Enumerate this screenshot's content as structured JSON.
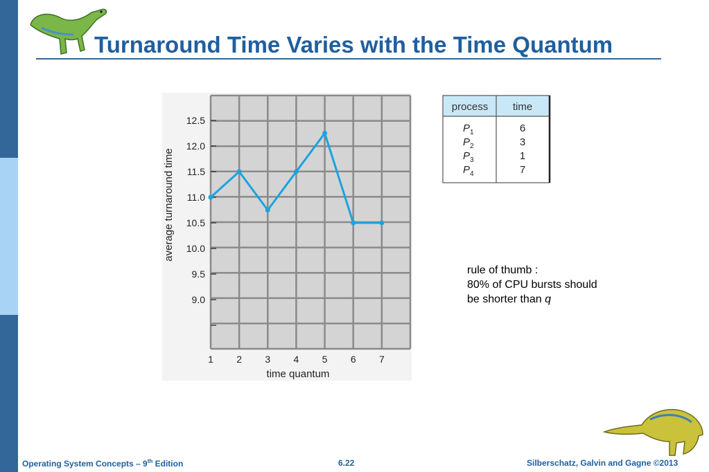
{
  "slide": {
    "title": "Turnaround Time Varies with the Time Quantum",
    "note": {
      "line1": "rule of thumb :",
      "line2": "80% of CPU bursts should",
      "line3_prefix": "be shorter than ",
      "line3_var": "q"
    },
    "footer": {
      "left_prefix": "Operating System Concepts – 9",
      "left_sup": "th",
      "left_suffix": " Edition",
      "center": "6.22",
      "right": "Silberschatz, Galvin and Gagne ©2013"
    },
    "icons": [
      "dinosaur-logo-icon",
      "dinosaur-bottom-icon"
    ]
  },
  "process_table": {
    "headers": [
      "process",
      "time"
    ],
    "rows": [
      {
        "name": "P",
        "sub": "1",
        "time": "6"
      },
      {
        "name": "P",
        "sub": "2",
        "time": "3"
      },
      {
        "name": "P",
        "sub": "3",
        "time": "1"
      },
      {
        "name": "P",
        "sub": "4",
        "time": "7"
      }
    ]
  },
  "chart_data": {
    "type": "line",
    "xlabel": "time quantum",
    "ylabel": "average turnaround time",
    "x": [
      1,
      2,
      3,
      4,
      5,
      6,
      7
    ],
    "x_tick_labels": [
      "1",
      "2",
      "3",
      "4",
      "5",
      "6",
      "7"
    ],
    "y_tick_labels": [
      "12.5",
      "12.0",
      "11.5",
      "11.0",
      "10.5",
      "10.0",
      "9.5",
      "9.0"
    ],
    "y_ticks": [
      12.5,
      12.0,
      11.5,
      11.0,
      10.5,
      10.0,
      9.5,
      9.0
    ],
    "series": [
      {
        "values": [
          11.0,
          11.5,
          10.75,
          11.5,
          12.25,
          10.5,
          10.5
        ]
      }
    ],
    "grid": true,
    "colors": {
      "line": "#1aa3e0",
      "plot_bg": "#d4d4d4",
      "grid": "#8a8a8a",
      "panel_bg": "#f3f3f3"
    }
  }
}
